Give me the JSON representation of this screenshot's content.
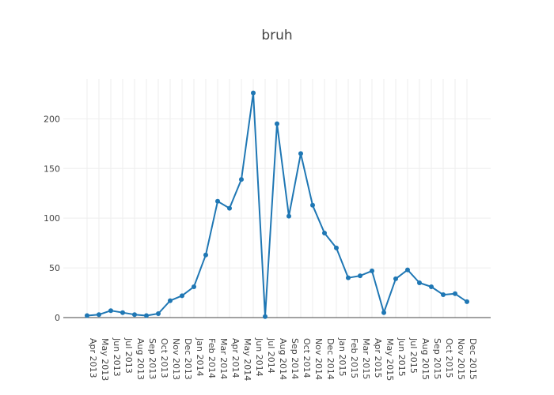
{
  "chart_data": {
    "type": "line",
    "title": "bruh",
    "xlabel": "",
    "ylabel": "",
    "x": [
      "Apr 2013",
      "May 2013",
      "Jun 2013",
      "Jul 2013",
      "Aug 2013",
      "Sep 2013",
      "Oct 2013",
      "Nov 2013",
      "Dec 2013",
      "Jan 2014",
      "Feb 2014",
      "Mar 2014",
      "Apr 2014",
      "May 2014",
      "Jun 2014",
      "Jul 2014",
      "Aug 2014",
      "Sep 2014",
      "Oct 2014",
      "Nov 2014",
      "Dec 2014",
      "Jan 2015",
      "Feb 2015",
      "Mar 2015",
      "Apr 2015",
      "May 2015",
      "Jun 2015",
      "Jul 2015",
      "Aug 2015",
      "Sep 2015",
      "Oct 2015",
      "Nov 2015",
      "Dec 2015"
    ],
    "series": [
      {
        "values": [
          2,
          3,
          7,
          5,
          3,
          2,
          4,
          17,
          22,
          31,
          63,
          117,
          110,
          139,
          226,
          1,
          195,
          102,
          165,
          113,
          85,
          70,
          40,
          42,
          47,
          5,
          39,
          48,
          35,
          31,
          23,
          24,
          16
        ],
        "color": "#1f77b4"
      }
    ],
    "ylim": [
      0,
      240
    ],
    "yticks": [
      0,
      50,
      100,
      150,
      200
    ],
    "grid": true,
    "legend": "none"
  }
}
